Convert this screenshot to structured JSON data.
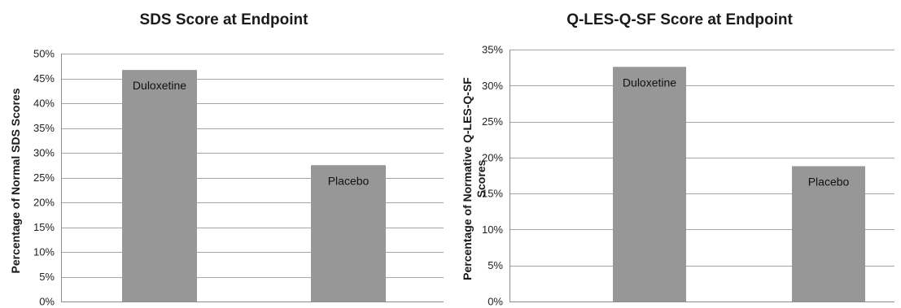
{
  "chart_data": [
    {
      "type": "bar",
      "title": "SDS Score at Endpoint",
      "ylabel": "Percentage of Normal SDS Scores",
      "ylabel_lines": [
        "Percentage of Normal SDS Scores"
      ],
      "xlabel": "",
      "categories": [
        "Duloxetine",
        "Placebo"
      ],
      "values": [
        46.7,
        27.5
      ],
      "ylim": [
        0,
        50
      ],
      "yticks": [
        0,
        5,
        10,
        15,
        20,
        25,
        30,
        35,
        40,
        45,
        50
      ],
      "ytick_labels": [
        "0%",
        "5%",
        "10%",
        "15%",
        "20%",
        "25%",
        "30%",
        "35%",
        "40%",
        "45%",
        "50%"
      ],
      "bar_color": "#979797",
      "grid": true,
      "legend": "none"
    },
    {
      "type": "bar",
      "title": "Q-LES-Q-SF Score at Endpoint",
      "ylabel": "Percentage of Normative Q-LES-Q-SF Scores",
      "ylabel_lines": [
        "Percentage of Normative Q-LES-Q-SF",
        "Scores"
      ],
      "xlabel": "",
      "categories": [
        "Duloxetine",
        "Placebo"
      ],
      "values": [
        32.6,
        18.8
      ],
      "ylim": [
        0,
        35
      ],
      "yticks": [
        0,
        5,
        10,
        15,
        20,
        25,
        30,
        35
      ],
      "ytick_labels": [
        "0%",
        "5%",
        "10%",
        "15%",
        "20%",
        "25%",
        "30%",
        "35%"
      ],
      "bar_color": "#979797",
      "grid": true,
      "legend": "none"
    }
  ]
}
